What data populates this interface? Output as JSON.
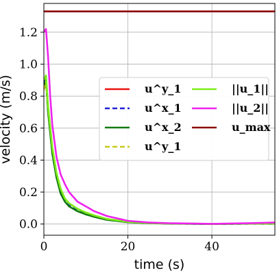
{
  "chart_data": {
    "type": "line",
    "xlabel": "time (s)",
    "ylabel": "velocity (m/s)",
    "xlim": [
      0,
      55
    ],
    "ylim": [
      -0.07,
      1.38
    ],
    "xticks": [
      0,
      20,
      40
    ],
    "yticks": [
      0.0,
      0.2,
      0.4,
      0.6,
      0.8,
      1.0,
      1.2
    ],
    "grid": true,
    "legend_position": "center-right",
    "series": [
      {
        "name": "u^y_1",
        "color": "#ee1111",
        "dash": "solid",
        "x": [
          0,
          55
        ],
        "y": [
          1.33,
          1.33
        ]
      },
      {
        "name": "u^x_1",
        "color": "#1f1fd8",
        "dash": "dashed",
        "x": [
          0,
          0.5,
          1,
          2,
          3,
          4,
          5,
          6,
          8,
          10,
          12,
          15,
          20,
          25,
          30,
          40,
          50,
          55
        ],
        "y": [
          0.88,
          0.92,
          0.72,
          0.46,
          0.3,
          0.2,
          0.15,
          0.12,
          0.085,
          0.065,
          0.048,
          0.028,
          0.012,
          0.006,
          0.003,
          0.0,
          0.002,
          0.002
        ]
      },
      {
        "name": "u^x_2",
        "color": "#117a11",
        "dash": "solid",
        "x": [
          0,
          0.5,
          1,
          2,
          3,
          4,
          5,
          6,
          8,
          10,
          12,
          15,
          20,
          25,
          30,
          40,
          50,
          55
        ],
        "y": [
          0.86,
          0.9,
          0.7,
          0.44,
          0.29,
          0.19,
          0.14,
          0.11,
          0.08,
          0.06,
          0.045,
          0.026,
          0.011,
          0.005,
          0.002,
          0.0,
          0.002,
          0.002
        ]
      },
      {
        "name": "u^y_1",
        "color": "#c8c81a",
        "dash": "dashed",
        "x": [
          0,
          0.5,
          1,
          2,
          3,
          4,
          5,
          6,
          8,
          10,
          12,
          15,
          20,
          25,
          30,
          40,
          50,
          55
        ],
        "y": [
          0.84,
          0.89,
          0.73,
          0.48,
          0.32,
          0.22,
          0.16,
          0.13,
          0.095,
          0.072,
          0.054,
          0.032,
          0.014,
          0.007,
          0.004,
          0.001,
          0.003,
          0.004
        ]
      },
      {
        "name": "||u_1||",
        "color": "#7ded1a",
        "dash": "solid",
        "x": [
          0,
          0.5,
          1,
          2,
          3,
          4,
          5,
          6,
          8,
          10,
          12,
          15,
          20,
          25,
          30,
          40,
          50,
          55
        ],
        "y": [
          0.9,
          0.93,
          0.74,
          0.48,
          0.32,
          0.22,
          0.16,
          0.13,
          0.095,
          0.072,
          0.054,
          0.032,
          0.014,
          0.007,
          0.004,
          0.001,
          0.004,
          0.006
        ]
      },
      {
        "name": "||u_2||",
        "color": "#ee22ee",
        "dash": "solid",
        "x": [
          0,
          0.5,
          1,
          1.5,
          2,
          3,
          4,
          5,
          6,
          8,
          10,
          12,
          15,
          20,
          25,
          30,
          40,
          50,
          55
        ],
        "y": [
          1.2,
          1.22,
          1.05,
          0.8,
          0.62,
          0.42,
          0.31,
          0.25,
          0.2,
          0.14,
          0.11,
          0.08,
          0.05,
          0.02,
          0.01,
          0.005,
          0.001,
          0.006,
          0.01
        ]
      },
      {
        "name": "u_max",
        "color": "#8b0a0a",
        "dash": "solid",
        "x": [
          0,
          55
        ],
        "y": [
          1.33,
          1.33
        ]
      }
    ]
  }
}
